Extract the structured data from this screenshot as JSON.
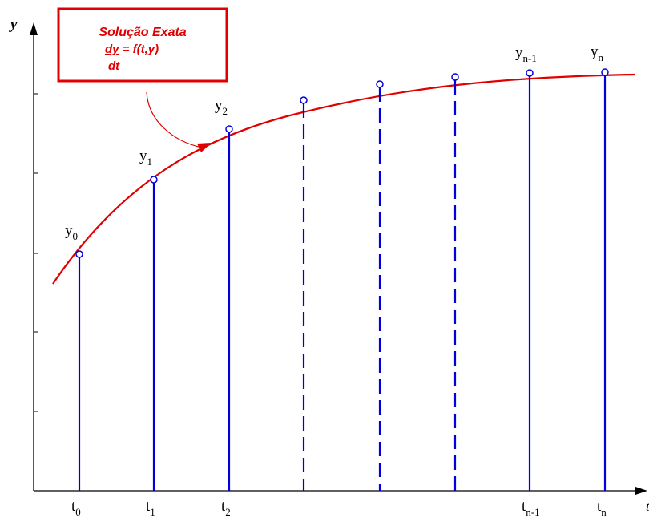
{
  "colors": {
    "axis": "#000000",
    "curve": "#e00000",
    "stem": "#0000dd",
    "annotation": "#e00000",
    "background": "#ffffff"
  },
  "axes": {
    "y_label": "y",
    "x_label": "t"
  },
  "annotation": {
    "title": "Solução Exata",
    "numerator": "dy",
    "rhs": " = f(t,y)",
    "denominator": "dt"
  },
  "stems": [
    {
      "t_base": "t",
      "t_sub": "0",
      "y_base": "y",
      "y_sub": "0",
      "style": "solid"
    },
    {
      "t_base": "t",
      "t_sub": "1",
      "y_base": "y",
      "y_sub": "1",
      "style": "solid"
    },
    {
      "t_base": "t",
      "t_sub": "2",
      "y_base": "y",
      "y_sub": "2",
      "style": "solid"
    },
    {
      "t_base": "",
      "t_sub": "",
      "y_base": "",
      "y_sub": "",
      "style": "dashed"
    },
    {
      "t_base": "",
      "t_sub": "",
      "y_base": "",
      "y_sub": "",
      "style": "dashed"
    },
    {
      "t_base": "",
      "t_sub": "",
      "y_base": "",
      "y_sub": "",
      "style": "dashed"
    },
    {
      "t_base": "t",
      "t_sub": "n-1",
      "y_base": "y",
      "y_sub": "n-1",
      "style": "solid"
    },
    {
      "t_base": "t",
      "t_sub": "n",
      "y_base": "y",
      "y_sub": "n",
      "style": "solid"
    }
  ]
}
